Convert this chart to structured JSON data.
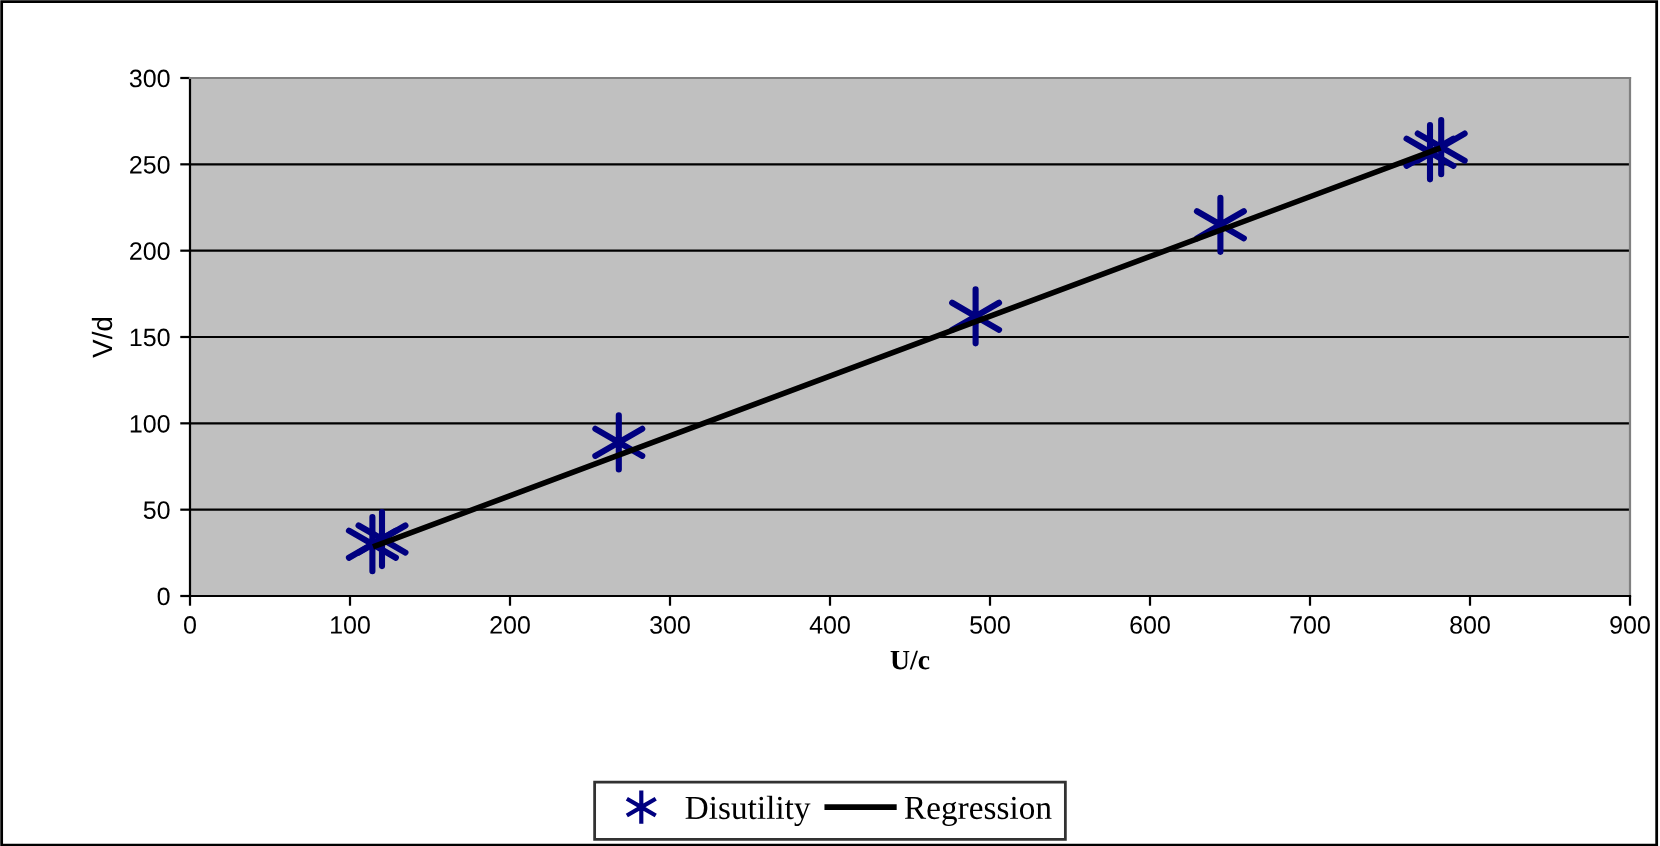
{
  "chart_data": {
    "type": "scatter",
    "xlabel": "U/c",
    "ylabel": "V/d",
    "xlim": [
      0,
      900
    ],
    "xticks": [
      0,
      100,
      200,
      300,
      400,
      500,
      600,
      700,
      800,
      900
    ],
    "ylim": [
      0,
      300
    ],
    "yticks": [
      0,
      50,
      100,
      150,
      200,
      250,
      300
    ],
    "grid": "y",
    "legend": "bottom",
    "series": [
      {
        "name": "Disutility",
        "marker": "cross",
        "color": "#000080",
        "x": [
          114,
          120,
          268,
          491,
          644,
          775,
          782
        ],
        "values": [
          30,
          33,
          89,
          162,
          215,
          257,
          260
        ]
      },
      {
        "name": "Regression",
        "type": "line",
        "marker": "none",
        "color": "#000000",
        "x": [
          116,
          780
        ],
        "values": [
          29,
          259
        ]
      }
    ]
  }
}
